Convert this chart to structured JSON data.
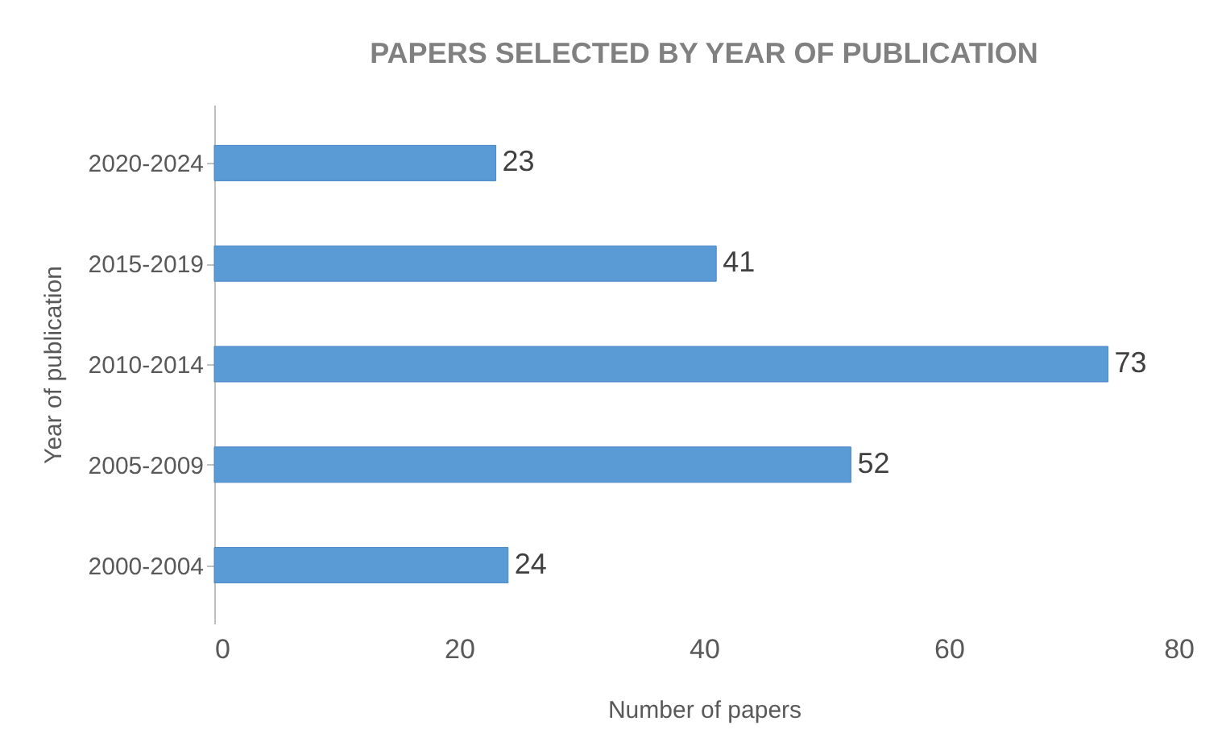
{
  "chart_data": {
    "type": "bar",
    "orientation": "horizontal",
    "title": "PAPERS SELECTED BY YEAR OF PUBLICATION",
    "xlabel": "Number of papers",
    "ylabel": "Year of publication",
    "categories": [
      "2020-2024",
      "2015-2019",
      "2010-2014",
      "2005-2009",
      "2000-2004"
    ],
    "values": [
      23,
      41,
      73,
      52,
      24
    ],
    "color": "#5b9bd5",
    "xlim": [
      0,
      80
    ],
    "xticks": [
      0,
      20,
      40,
      60,
      80
    ],
    "grid": false,
    "data_labels": true
  }
}
